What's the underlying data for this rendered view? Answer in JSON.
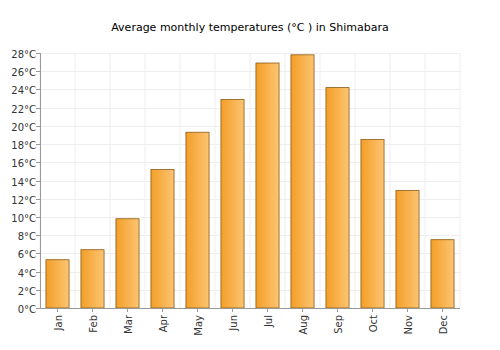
{
  "chart_data": {
    "type": "bar",
    "title": "Average monthly temperatures (°C ) in Shimabara",
    "categories": [
      "Jan",
      "Feb",
      "Mar",
      "Apr",
      "May",
      "Jun",
      "Jul",
      "Aug",
      "Sep",
      "Oct",
      "Nov",
      "Dec"
    ],
    "values": [
      5.3,
      6.4,
      9.8,
      15.2,
      19.3,
      22.9,
      26.9,
      27.8,
      24.2,
      18.5,
      12.9,
      7.5
    ],
    "color": "#fba428",
    "ylim": [
      0,
      28
    ],
    "yticks": [
      {
        "value": 0,
        "label": "0°C"
      },
      {
        "value": 2,
        "label": "2°C"
      },
      {
        "value": 4,
        "label": "4°C"
      },
      {
        "value": 6,
        "label": "6°C"
      },
      {
        "value": 8,
        "label": "8°C"
      },
      {
        "value": 10,
        "label": "10°C"
      },
      {
        "value": 12,
        "label": "12°C"
      },
      {
        "value": 14,
        "label": "14°C"
      },
      {
        "value": 16,
        "label": "16°C"
      },
      {
        "value": 18,
        "label": "18°C"
      },
      {
        "value": 20,
        "label": "20°C"
      },
      {
        "value": 22,
        "label": "22°C"
      },
      {
        "value": 24,
        "label": "24°C"
      },
      {
        "value": 26,
        "label": "26°C"
      },
      {
        "value": 28,
        "label": "28°C"
      }
    ],
    "grid": true
  }
}
